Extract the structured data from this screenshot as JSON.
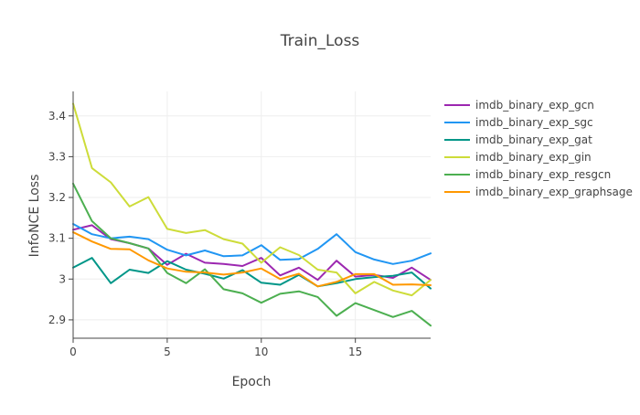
{
  "chart_data": {
    "type": "line",
    "title": "Train_Loss",
    "xlabel": "Epoch",
    "ylabel": "InfoNCE Loss",
    "xlim": [
      0,
      19
    ],
    "ylim": [
      2.855,
      3.46
    ],
    "xticks": [
      0,
      5,
      10,
      15
    ],
    "xtick_labels": [
      "0",
      "5",
      "10",
      "15"
    ],
    "yticks": [
      2.9,
      3.0,
      3.1,
      3.2,
      3.3,
      3.4
    ],
    "ytick_labels": [
      "2.9",
      "3",
      "3.1",
      "3.2",
      "3.3",
      "3.4"
    ],
    "grid": true,
    "legend_position": "right",
    "x": [
      0,
      1,
      2,
      3,
      4,
      5,
      6,
      7,
      8,
      9,
      10,
      11,
      12,
      13,
      14,
      15,
      16,
      17,
      18,
      19
    ],
    "series": [
      {
        "name": "imdb_binary_exp_gcn",
        "color": "#9c27b0",
        "values": [
          3.121,
          3.132,
          3.098,
          3.088,
          3.075,
          3.035,
          3.062,
          3.04,
          3.037,
          3.032,
          3.052,
          3.009,
          3.028,
          2.998,
          3.045,
          3.006,
          3.01,
          3.003,
          3.028,
          2.998
        ]
      },
      {
        "name": "imdb_binary_exp_sgc",
        "color": "#2196f3",
        "values": [
          3.135,
          3.11,
          3.1,
          3.104,
          3.098,
          3.072,
          3.058,
          3.07,
          3.056,
          3.058,
          3.083,
          3.047,
          3.049,
          3.074,
          3.11,
          3.066,
          3.048,
          3.037,
          3.045,
          3.063
        ]
      },
      {
        "name": "imdb_binary_exp_gat",
        "color": "#009688",
        "values": [
          3.028,
          3.052,
          2.99,
          3.023,
          3.015,
          3.044,
          3.023,
          3.013,
          3.001,
          3.022,
          2.991,
          2.986,
          3.01,
          2.982,
          2.99,
          3.0,
          3.005,
          3.008,
          3.016,
          2.977
        ]
      },
      {
        "name": "imdb_binary_exp_gin",
        "color": "#cddc39",
        "values": [
          3.43,
          3.272,
          3.237,
          3.178,
          3.201,
          3.123,
          3.113,
          3.12,
          3.098,
          3.087,
          3.04,
          3.078,
          3.059,
          3.023,
          3.016,
          2.965,
          2.993,
          2.972,
          2.96,
          2.998
        ]
      },
      {
        "name": "imdb_binary_exp_resgcn",
        "color": "#4caf50",
        "values": [
          3.234,
          3.142,
          3.1,
          3.088,
          3.075,
          3.015,
          2.99,
          3.024,
          2.975,
          2.965,
          2.942,
          2.964,
          2.97,
          2.956,
          2.91,
          2.941,
          2.924,
          2.907,
          2.922,
          2.886
        ]
      },
      {
        "name": "imdb_binary_exp_graphsage",
        "color": "#ff9800",
        "values": [
          3.115,
          3.092,
          3.074,
          3.073,
          3.046,
          3.026,
          3.018,
          3.016,
          3.011,
          3.016,
          3.026,
          3.0,
          3.013,
          2.982,
          2.993,
          3.012,
          3.012,
          2.986,
          2.987,
          2.985
        ]
      }
    ]
  }
}
